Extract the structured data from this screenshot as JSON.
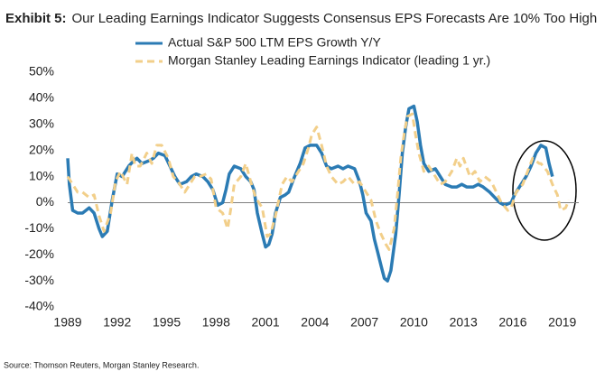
{
  "chart_data": {
    "type": "line",
    "title_label": "Exhibit 5:",
    "title": "Our Leading Earnings Indicator Suggests Consensus EPS Forecasts Are 10% Too High",
    "source": "Source: Thomson Reuters, Morgan Stanley Research.",
    "xlim": [
      1989,
      2020
    ],
    "xticks": [
      1989,
      1992,
      1995,
      1998,
      2001,
      2004,
      2007,
      2010,
      2013,
      2016,
      2019
    ],
    "ylim": [
      -40,
      50
    ],
    "yticks": [
      {
        "value": -40,
        "label": "-40%"
      },
      {
        "value": -30,
        "label": "-30%"
      },
      {
        "value": -20,
        "label": "-20%"
      },
      {
        "value": -10,
        "label": "-10%"
      },
      {
        "value": 0,
        "label": "0%"
      },
      {
        "value": 10,
        "label": "10%"
      },
      {
        "value": 20,
        "label": "20%"
      },
      {
        "value": 30,
        "label": "30%"
      },
      {
        "value": 40,
        "label": "40%"
      },
      {
        "value": 50,
        "label": "50%"
      }
    ],
    "zero_line": true,
    "series": [
      {
        "name": "Actual S&P 500 LTM EPS Growth Y/Y",
        "color": "#2b7bb4",
        "line_style": "solid",
        "x": [
          1989.0,
          1989.1,
          1989.3,
          1989.6,
          1989.9,
          1990.3,
          1990.6,
          1990.9,
          1991.1,
          1991.4,
          1991.7,
          1992.0,
          1992.3,
          1992.7,
          1993.0,
          1993.2,
          1993.5,
          1993.9,
          1994.2,
          1994.5,
          1994.9,
          1995.2,
          1995.5,
          1995.8,
          1996.2,
          1996.5,
          1996.8,
          1997.2,
          1997.5,
          1997.8,
          1998.1,
          1998.4,
          1998.6,
          1998.8,
          1999.1,
          1999.5,
          1999.8,
          2000.1,
          2000.3,
          2000.5,
          2000.8,
          2001.0,
          2001.2,
          2001.4,
          2001.6,
          2001.9,
          2002.2,
          2002.4,
          2002.7,
          2003.1,
          2003.4,
          2003.7,
          2004.1,
          2004.4,
          2004.7,
          2005.0,
          2005.4,
          2005.7,
          2006.0,
          2006.4,
          2006.7,
          2006.9,
          2007.1,
          2007.4,
          2007.6,
          2007.8,
          2008.0,
          2008.2,
          2008.4,
          2008.6,
          2008.9,
          2009.1,
          2009.3,
          2009.5,
          2009.7,
          2010.0,
          2010.2,
          2010.4,
          2010.6,
          2010.9,
          2011.3,
          2011.6,
          2011.9,
          2012.3,
          2012.6,
          2012.9,
          2013.2,
          2013.6,
          2013.9,
          2014.2,
          2014.6,
          2014.9,
          2015.2,
          2015.5,
          2015.9,
          2016.1,
          2016.4,
          2016.8,
          2017.1,
          2017.4,
          2017.7,
          2018.0,
          2018.2,
          2018.4
        ],
        "values": [
          17,
          7,
          -3,
          -4,
          -4,
          -2,
          -4,
          -10,
          -13,
          -11,
          1,
          11,
          10,
          14,
          16,
          17,
          15,
          16,
          17,
          19,
          18,
          14,
          10,
          7,
          8,
          10,
          11,
          10,
          8,
          5,
          -1,
          0,
          5,
          11,
          14,
          13,
          10,
          8,
          5,
          -4,
          -12,
          -17,
          -16,
          -12,
          -4,
          2,
          3,
          4,
          9,
          15,
          21,
          22,
          22,
          19,
          14,
          13,
          14,
          13,
          14,
          13,
          8,
          3,
          -4,
          -7,
          -14,
          -19,
          -24,
          -29,
          -30,
          -26,
          -12,
          3,
          19,
          29,
          36,
          37,
          31,
          22,
          15,
          12,
          13,
          10,
          7,
          6,
          6,
          7,
          6,
          6,
          7,
          6,
          4,
          2,
          0,
          -1,
          0,
          3,
          6,
          10,
          14,
          19,
          22,
          21,
          15,
          10
        ]
      },
      {
        "name": "Morgan Stanley Leading Earnings Indicator (leading 1 yr.)",
        "color": "#f2cf8a",
        "line_style": "dashed",
        "x": [
          1989.0,
          1989.3,
          1989.6,
          1989.9,
          1990.3,
          1990.6,
          1990.9,
          1991.2,
          1991.6,
          1991.9,
          1992.2,
          1992.6,
          1992.9,
          1993.1,
          1993.4,
          1993.8,
          1994.1,
          1994.4,
          1994.7,
          1995.1,
          1995.4,
          1995.7,
          1996.1,
          1996.4,
          1996.7,
          1997.0,
          1997.4,
          1997.7,
          1998.0,
          1998.4,
          1998.7,
          1998.9,
          1999.1,
          1999.5,
          1999.8,
          2000.1,
          2000.4,
          2000.8,
          2001.1,
          2001.3,
          2001.6,
          2002.0,
          2002.3,
          2002.6,
          2002.9,
          2003.3,
          2003.6,
          2003.8,
          2004.1,
          2004.4,
          2004.7,
          2005.0,
          2005.4,
          2005.7,
          2006.0,
          2006.4,
          2006.7,
          2007.0,
          2007.4,
          2007.7,
          2008.0,
          2008.3,
          2008.5,
          2008.8,
          2009.0,
          2009.2,
          2009.4,
          2009.6,
          2009.9,
          2010.1,
          2010.3,
          2010.6,
          2010.9,
          2011.3,
          2011.6,
          2011.9,
          2012.3,
          2012.6,
          2012.8,
          2013.0,
          2013.4,
          2013.7,
          2014.0,
          2014.3,
          2014.7,
          2015.0,
          2015.3,
          2015.7,
          2015.9,
          2016.2,
          2016.6,
          2016.9,
          2017.2,
          2017.6,
          2017.7,
          2018.1,
          2018.4,
          2018.7,
          2018.9,
          2019.2,
          2019.4
        ],
        "values": [
          10,
          7,
          4,
          4,
          2,
          3,
          -5,
          -11,
          -4,
          8,
          12,
          7,
          19,
          14,
          14,
          19,
          15,
          22,
          22,
          17,
          10,
          8,
          4,
          7,
          10,
          10,
          11,
          9,
          -2,
          -4,
          -10,
          -2,
          7,
          10,
          15,
          8,
          2,
          -2,
          -13,
          -12,
          -5,
          7,
          10,
          8,
          11,
          15,
          21,
          26,
          29,
          22,
          14,
          10,
          7,
          8,
          10,
          7,
          8,
          5,
          1,
          -7,
          -12,
          -16,
          -18,
          -10,
          3,
          17,
          26,
          33,
          34,
          26,
          19,
          12,
          14,
          10,
          7,
          8,
          12,
          17,
          14,
          17,
          10,
          12,
          8,
          10,
          8,
          4,
          0,
          -3,
          -2,
          4,
          7,
          12,
          17,
          15,
          15,
          12,
          7,
          3,
          -3,
          -2,
          1
        ]
      }
    ]
  }
}
